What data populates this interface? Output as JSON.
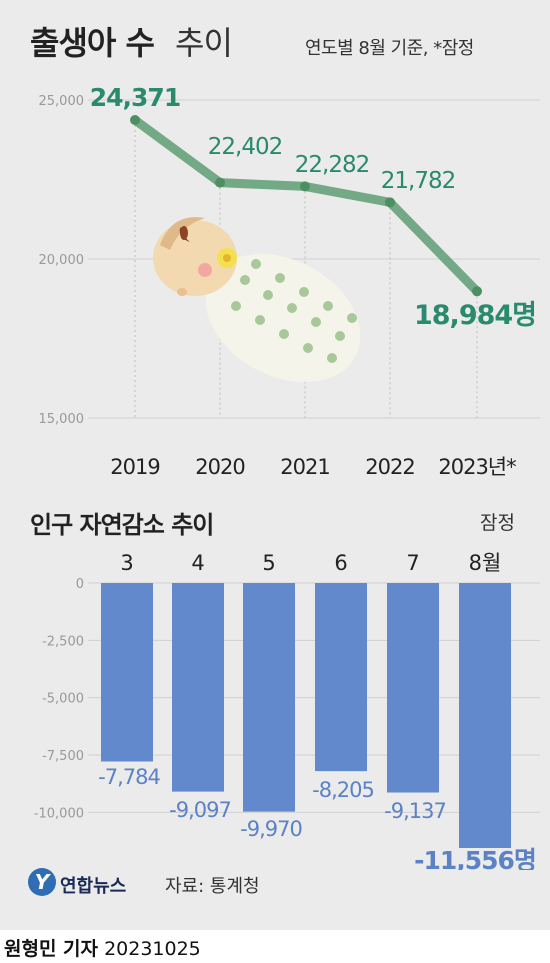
{
  "charts": {
    "births": {
      "title_bold": "출생아 수",
      "title_light": "추이",
      "note": "연도별 8월 기준, *잠정",
      "unit_suffix": "명"
    },
    "natural_decrease": {
      "title": "인구 자연감소 추이",
      "note": "잠정",
      "unit_suffix": "명"
    }
  },
  "chart_data": [
    {
      "type": "line",
      "title": "출생아 수 추이",
      "subtitle": "연도별 8월 기준, *잠정",
      "categories": [
        "2019",
        "2020",
        "2021",
        "2022",
        "2023년*"
      ],
      "values": [
        24371,
        22402,
        22282,
        21782,
        18984
      ],
      "value_labels": [
        "24,371",
        "22,402",
        "22,282",
        "21,782",
        "18,984명"
      ],
      "ylim": [
        15000,
        25000
      ],
      "yticks": [
        15000,
        20000,
        25000
      ],
      "ytick_labels": [
        "15,000",
        "20,000",
        "25,000"
      ],
      "color": "#5e9e73",
      "label_color": "#2a8a6e"
    },
    {
      "type": "bar",
      "title": "인구 자연감소 추이",
      "subtitle": "잠정",
      "categories": [
        "3",
        "4",
        "5",
        "6",
        "7",
        "8월"
      ],
      "values": [
        -7784,
        -9097,
        -9970,
        -8205,
        -9137,
        -11556
      ],
      "value_labels": [
        "-7,784",
        "-9,097",
        "-9,970",
        "-8,205",
        "-9,137",
        "-11,556명"
      ],
      "ylim": [
        -11556,
        0
      ],
      "yticks": [
        0,
        -2500,
        -5000,
        -7500,
        -10000
      ],
      "ytick_labels": [
        "0",
        "-2,500",
        "-5,000",
        "-7,500",
        "-10,000"
      ],
      "color": "#6289cc",
      "label_color": "#5b82c5"
    }
  ],
  "logo": {
    "mark": "Y",
    "text": "연합뉴스"
  },
  "source": "자료: 통계청",
  "footer": {
    "author": "원형민 기자",
    "date": "20231025"
  }
}
